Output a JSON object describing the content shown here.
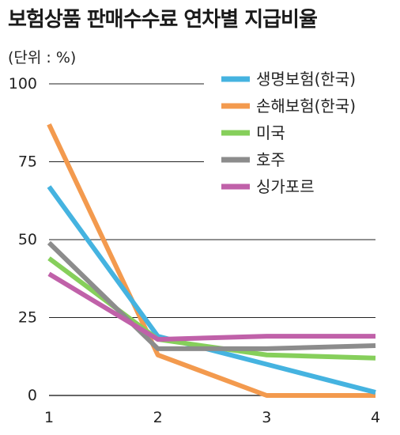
{
  "title": "보험상품 판매수수료 연차별 지급비율",
  "chart_data": {
    "type": "line",
    "title": "보험상품 판매수수료 연차별 지급비율",
    "unit_label": "(단위 : %)",
    "x": [
      1,
      2,
      3,
      4
    ],
    "xticks": [
      "1",
      "2",
      "3",
      "4"
    ],
    "yticks": [
      "0",
      "25",
      "50",
      "75",
      "100"
    ],
    "ylim": [
      0,
      100
    ],
    "grid": true,
    "legend_position": "top-right",
    "series": [
      {
        "name": "생명보험(한국)",
        "color": "#45b3e0",
        "values": [
          67,
          19,
          10,
          1
        ]
      },
      {
        "name": "손해보험(한국)",
        "color": "#f39a4e",
        "values": [
          87,
          13,
          0,
          0
        ]
      },
      {
        "name": "미국",
        "color": "#86cf5b",
        "values": [
          44,
          18,
          13,
          12
        ]
      },
      {
        "name": "호주",
        "color": "#8c8c8c",
        "values": [
          49,
          15,
          15,
          16
        ]
      },
      {
        "name": "싱가포르",
        "color": "#c061a9",
        "values": [
          39,
          18,
          19,
          19
        ]
      }
    ]
  }
}
